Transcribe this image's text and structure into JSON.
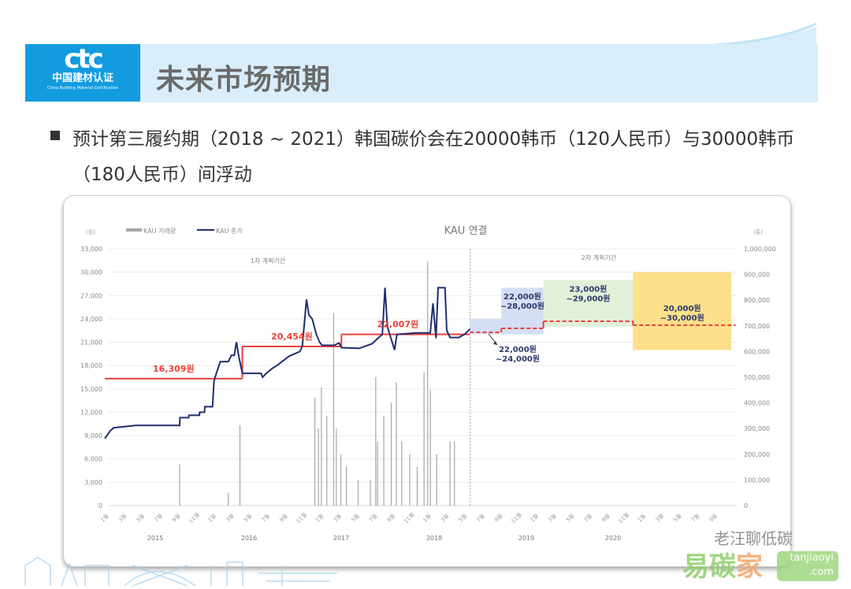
{
  "header": {
    "logo_text": "ctc",
    "logo_cn": "中国建材认证",
    "logo_en": "China Building Material Certification",
    "title": "未来市场预期",
    "brand_color": "#139be0",
    "band_color": "#d9eefa"
  },
  "bullet": {
    "icon": "square-bullet-icon",
    "text": "预计第三履约期（2018 ~ 2021）韩国碳价会在20000韩币（120人民币）与30000韩币（180人民币）间浮动"
  },
  "chart_data": {
    "type": "line",
    "title": "KAU 연결",
    "ylabel_left": "(원)",
    "ylabel_right": "(톤)",
    "ylim_left": [
      0,
      33000
    ],
    "ylim_right": [
      0,
      1000000
    ],
    "yticks_left": [
      "0",
      "3,000",
      "6,000",
      "9,000",
      "12,000",
      "15,000",
      "18,000",
      "21,000",
      "24,000",
      "27,000",
      "30,000",
      "33,000"
    ],
    "yticks_right": [
      "0",
      "100,000",
      "200,000",
      "300,000",
      "400,000",
      "500,000",
      "600,000",
      "700,000",
      "800,000",
      "900,000",
      "1,000,000"
    ],
    "x_tick_labels": [
      "1월",
      "3월",
      "5월",
      "7월",
      "9월",
      "11월",
      "1월",
      "3월",
      "5월",
      "7월",
      "9월",
      "11월",
      "1월",
      "3월",
      "5월",
      "7월",
      "9월",
      "11월",
      "1월",
      "3월",
      "5월",
      "7월",
      "9월",
      "11월",
      "1월",
      "3월",
      "5월",
      "7월",
      "9월",
      "11월",
      "1월",
      "3월",
      "5월",
      "7월",
      "9월"
    ],
    "years": [
      "2015",
      "2016",
      "2017",
      "2018",
      "2019",
      "2020"
    ],
    "grid": true,
    "legend_position": "top-left",
    "legend": [
      {
        "name": "KAU 거래량",
        "color": "#a6a6a6"
      },
      {
        "name": "KAU 종가",
        "color": "#1f2f6e"
      }
    ],
    "period_labels": [
      "1차 계획기간",
      "2차 계획기간"
    ],
    "period_split_date": "2018-05-25",
    "series": [
      {
        "name": "KAU 종가",
        "axis": "left",
        "color": "#1f2f6e",
        "points": [
          [
            "2015-01-01",
            8600
          ],
          [
            "2015-01-19",
            9600
          ],
          [
            "2015-02-01",
            10000
          ],
          [
            "2015-04-15",
            10300
          ],
          [
            "2015-09-12",
            10300
          ],
          [
            "2015-09-13",
            11300
          ],
          [
            "2015-10-12",
            11300
          ],
          [
            "2015-10-13",
            11600
          ],
          [
            "2015-11-18",
            11600
          ],
          [
            "2015-11-19",
            12000
          ],
          [
            "2015-12-05",
            12000
          ],
          [
            "2015-12-06",
            12700
          ],
          [
            "2016-01-02",
            12700
          ],
          [
            "2016-01-07",
            16000
          ],
          [
            "2016-01-15",
            17000
          ],
          [
            "2016-01-28",
            18500
          ],
          [
            "2016-02-25",
            18500
          ],
          [
            "2016-03-05",
            19300
          ],
          [
            "2016-03-15",
            19300
          ],
          [
            "2016-03-22",
            21000
          ],
          [
            "2016-04-01",
            19000
          ],
          [
            "2016-04-12",
            17000
          ],
          [
            "2016-06-15",
            17000
          ],
          [
            "2016-06-20",
            16500
          ],
          [
            "2016-07-02",
            17000
          ],
          [
            "2016-07-25",
            17700
          ],
          [
            "2016-08-08",
            18000
          ],
          [
            "2016-08-28",
            18600
          ],
          [
            "2016-09-19",
            19200
          ],
          [
            "2016-10-25",
            19800
          ],
          [
            "2016-11-03",
            20500
          ],
          [
            "2016-11-17",
            26500
          ],
          [
            "2016-11-25",
            24500
          ],
          [
            "2016-12-06",
            24000
          ],
          [
            "2016-12-20",
            22000
          ],
          [
            "2016-12-31",
            21000
          ],
          [
            "2017-01-09",
            20600
          ],
          [
            "2017-02-20",
            20600
          ],
          [
            "2017-03-06",
            20900
          ],
          [
            "2017-03-14",
            20300
          ],
          [
            "2017-05-14",
            20200
          ],
          [
            "2017-06-27",
            20800
          ],
          [
            "2017-07-16",
            21500
          ],
          [
            "2017-08-01",
            22000
          ],
          [
            "2017-08-10",
            28000
          ],
          [
            "2017-08-18",
            23000
          ],
          [
            "2017-08-26",
            22000
          ],
          [
            "2017-09-04",
            21000
          ],
          [
            "2017-09-12",
            20000
          ],
          [
            "2017-09-20",
            22000
          ],
          [
            "2017-11-24",
            22200
          ],
          [
            "2018-01-12",
            22200
          ],
          [
            "2018-01-21",
            26000
          ],
          [
            "2018-02-01",
            21500
          ],
          [
            "2018-02-08",
            28000
          ],
          [
            "2018-03-01",
            28000
          ],
          [
            "2018-03-07",
            22500
          ],
          [
            "2018-03-18",
            21600
          ],
          [
            "2018-04-17",
            21600
          ],
          [
            "2018-05-06",
            22000
          ],
          [
            "2018-05-25",
            22700
          ]
        ]
      },
      {
        "name": "KAU 거래량",
        "axis": "right",
        "type": "bar",
        "color": "#a6a6a6",
        "points": [
          [
            "2015-09-12",
            160000
          ],
          [
            "2016-02-25",
            50000
          ],
          [
            "2016-04-04",
            313000
          ],
          [
            "2016-12-15",
            420000
          ],
          [
            "2016-12-27",
            300000
          ],
          [
            "2017-01-07",
            460000
          ],
          [
            "2017-01-25",
            350000
          ],
          [
            "2017-02-18",
            750000
          ],
          [
            "2017-02-27",
            300000
          ],
          [
            "2017-03-12",
            200000
          ],
          [
            "2017-04-01",
            150000
          ],
          [
            "2017-05-10",
            100000
          ],
          [
            "2017-06-21",
            100000
          ],
          [
            "2017-07-09",
            500000
          ],
          [
            "2017-07-15",
            250000
          ],
          [
            "2017-08-06",
            350000
          ],
          [
            "2017-09-01",
            400000
          ],
          [
            "2017-09-18",
            480000
          ],
          [
            "2017-10-06",
            250000
          ],
          [
            "2017-11-03",
            200000
          ],
          [
            "2017-11-28",
            150000
          ],
          [
            "2017-12-21",
            520000
          ],
          [
            "2018-01-03",
            950000
          ],
          [
            "2018-01-12",
            450000
          ],
          [
            "2018-02-03",
            200000
          ],
          [
            "2018-03-18",
            250000
          ],
          [
            "2018-04-03",
            250000
          ]
        ]
      }
    ],
    "average_steps": [
      {
        "label": "16,309원",
        "value": 16309,
        "start": "2015-01-01",
        "end": "2016-04-12",
        "color": "#e8413c"
      },
      {
        "label": "20,454원",
        "value": 20454,
        "start": "2016-04-12",
        "end": "2017-03-14",
        "color": "#e8413c"
      },
      {
        "label": "22,007원",
        "value": 22007,
        "start": "2017-03-14",
        "end": "2018-05-25",
        "color": "#e8413c"
      }
    ],
    "forecast_line": {
      "style": "dashed",
      "color": "#e8413c",
      "steps": [
        {
          "value": 22270,
          "start": "2018-05-25",
          "end": "2018-09-10"
        },
        {
          "value": 22780,
          "start": "2018-09-10",
          "end": "2019-02-01"
        },
        {
          "value": 23690,
          "start": "2019-02-01",
          "end": "2019-12-01"
        },
        {
          "value": 23180,
          "start": "2019-12-01",
          "end": "2020-11-15"
        }
      ]
    },
    "forecast_ranges": [
      {
        "label_1": "22,000원",
        "label_2": "~24,000원",
        "low": 22000,
        "high": 24000,
        "start": "2018-05-25",
        "end": "2018-09-10",
        "color": "#d5def2"
      },
      {
        "label_1": "22,000원",
        "label_2": "~28,000원",
        "low": 22000,
        "high": 28000,
        "start": "2018-09-10",
        "end": "2019-02-01",
        "color": "#d5def2"
      },
      {
        "label_1": "23,000원",
        "label_2": "~29,000원",
        "low": 23000,
        "high": 29000,
        "start": "2019-02-01",
        "end": "2019-12-01",
        "color": "#e2f0d9"
      },
      {
        "label_1": "20,000원",
        "label_2": "~30,000원",
        "low": 20000,
        "high": 30000,
        "start": "2019-12-01",
        "end": "2020-11-01",
        "color": "#fde08a"
      }
    ]
  },
  "watermark": {
    "line1": "老汪聊低碳",
    "line2_green": "易碳",
    "line2_orange": "家",
    "site_1": "tanjiaoyi",
    "site_2": ".com"
  }
}
